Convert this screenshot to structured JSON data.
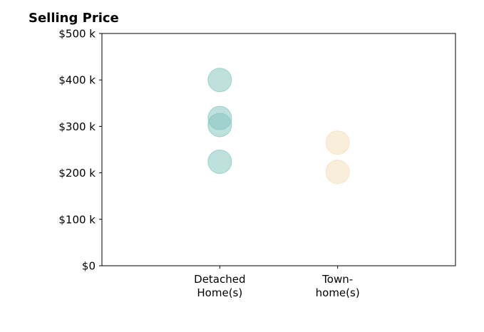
{
  "chart_data": {
    "type": "scatter",
    "title": "Selling Price",
    "xlabel": "",
    "ylabel": "",
    "categories": [
      "Detached\nHome(s)",
      "Town-\nhome(s)"
    ],
    "x_range": [
      -1,
      2
    ],
    "ylim": [
      0,
      500
    ],
    "yticks": [
      0,
      100,
      200,
      300,
      400,
      500
    ],
    "ytick_labels": [
      "$0",
      "$100 k",
      "$200 k",
      "$300 k",
      "$400 k",
      "$500 k"
    ],
    "grid": false,
    "series": [
      {
        "category_index": 0,
        "color": "#7fc4bd",
        "values": [
          400,
          318,
          303,
          224
        ]
      },
      {
        "category_index": 1,
        "color": "#f3ddb3",
        "values": [
          265,
          202
        ]
      }
    ]
  }
}
